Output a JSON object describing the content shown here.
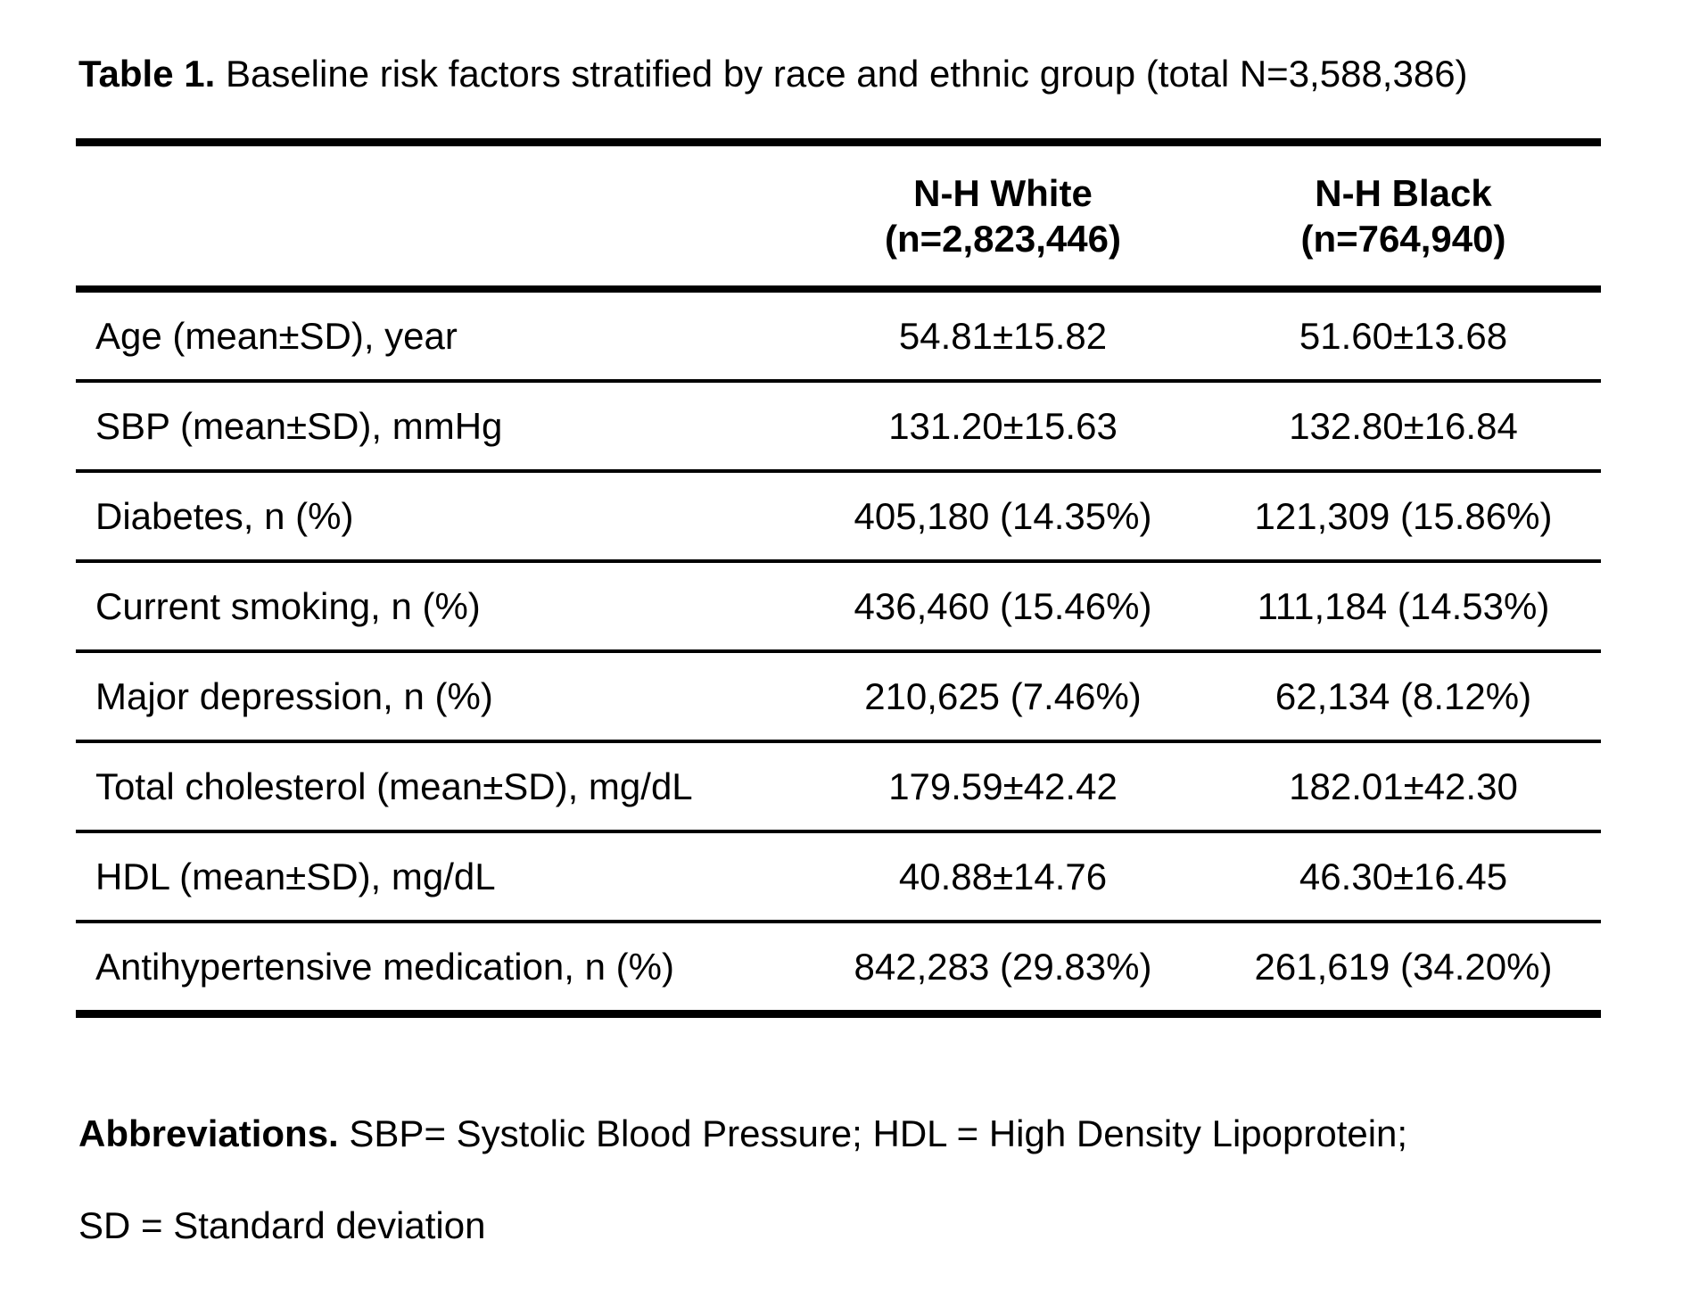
{
  "title": {
    "label": "Table 1.",
    "text": " Baseline risk factors stratified by race and ethnic group (total N=3,588,386)"
  },
  "table": {
    "columns": [
      {
        "name": "N-H White",
        "n": "(n=2,823,446)"
      },
      {
        "name": "N-H Black",
        "n": "(n=764,940)"
      }
    ],
    "rows": [
      {
        "label": "Age (mean±SD), year",
        "white": "54.81±15.82",
        "black": "51.60±13.68"
      },
      {
        "label": "SBP (mean±SD), mmHg",
        "white": "131.20±15.63",
        "black": "132.80±16.84"
      },
      {
        "label": "Diabetes, n (%)",
        "white": "405,180 (14.35%)",
        "black": "121,309 (15.86%)"
      },
      {
        "label": "Current smoking, n (%)",
        "white": "436,460 (15.46%)",
        "black": "111,184 (14.53%)"
      },
      {
        "label": "Major depression, n (%)",
        "white": "210,625 (7.46%)",
        "black": "62,134 (8.12%)"
      },
      {
        "label": "Total cholesterol (mean±SD),  mg/dL",
        "white": "179.59±42.42",
        "black": "182.01±42.30"
      },
      {
        "label": "HDL (mean±SD), mg/dL",
        "white": "40.88±14.76",
        "black": "46.30±16.45"
      },
      {
        "label": "Antihypertensive medication, n (%)",
        "white": "842,283 (29.83%)",
        "black": "261,619 (34.20%)"
      }
    ]
  },
  "footnote": {
    "label": "Abbreviations.",
    "line1": " SBP= Systolic Blood Pressure; HDL = High Density Lipoprotein;",
    "line2": "SD = Standard deviation"
  },
  "colors": {
    "text": "#000000",
    "background": "#ffffff",
    "rule": "#000000"
  }
}
